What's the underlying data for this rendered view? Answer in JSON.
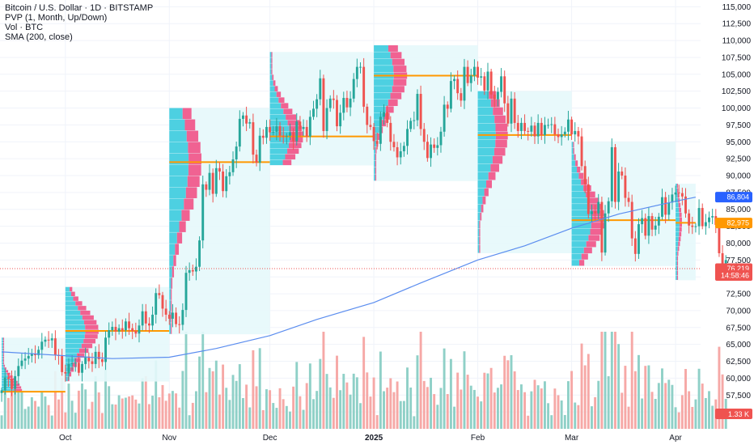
{
  "legend": {
    "symbol": "Bitcoin / U.S. Dollar · 1D · BITSTAMP",
    "pvp": "PVP (1, Month, Up/Down)",
    "vol": "Vol · BTC",
    "sma": "SMA (200, close)"
  },
  "colors": {
    "up": "#26a69a",
    "down": "#ef5350",
    "up_vol": "#8fd0c7",
    "down_vol": "#f6a8a6",
    "sma": "#5b8def",
    "poc": "#ff9800",
    "profile_up": "#4dd0e1",
    "profile_down": "#f06292",
    "profile_bg": "#e6f8fb",
    "price_line": "#ef5350"
  },
  "chart_data": {
    "type": "candlestick",
    "title": "Bitcoin / U.S. Dollar · 1D · BITSTAMP",
    "y_ticks": [
      55000,
      57500,
      60000,
      62500,
      65000,
      67500,
      70000,
      72500,
      75000,
      77500,
      80000,
      82500,
      85000,
      87500,
      90000,
      92500,
      95000,
      97500,
      100000,
      102500,
      105000,
      107500,
      110000,
      112500,
      115000
    ],
    "y_tick_labels": [
      "55,000",
      "57,500",
      "60,000",
      "62,500",
      "65,000",
      "67,500",
      "70,000",
      "72,500",
      "75,000",
      "77,500",
      "80,000",
      "82,500",
      "85,000",
      "87,500",
      "90,000",
      "92,500",
      "95,000",
      "97,500",
      "100,000",
      "102,500",
      "105,000",
      "107,500",
      "110,000",
      "112,500",
      "115,000"
    ],
    "ylim": [
      52500,
      116000
    ],
    "x_labels": [
      {
        "date": "2024-10-01",
        "label": "Oct",
        "bold": false
      },
      {
        "date": "2024-11-01",
        "label": "Nov",
        "bold": false
      },
      {
        "date": "2024-12-01",
        "label": "Dec",
        "bold": false
      },
      {
        "date": "2025-01-01",
        "label": "2025",
        "bold": true
      },
      {
        "date": "2025-02-01",
        "label": "Feb",
        "bold": false
      },
      {
        "date": "2025-03-01",
        "label": "Mar",
        "bold": false
      },
      {
        "date": "2025-04-01",
        "label": "Apr",
        "bold": false
      }
    ],
    "date_start": "2024-09-12",
    "date_end": "2025-04-07",
    "close_series": [
      58200,
      60100,
      59900,
      58400,
      60300,
      61800,
      62600,
      62900,
      63300,
      63600,
      63400,
      64200,
      65400,
      65700,
      65600,
      65900,
      63400,
      63300,
      60900,
      60700,
      62100,
      62200,
      62300,
      60800,
      62100,
      63200,
      62500,
      62100,
      63900,
      62800,
      62400,
      66000,
      67100,
      67600,
      66900,
      67400,
      67100,
      68400,
      67400,
      67000,
      66600,
      67800,
      69900,
      68100,
      67800,
      69400,
      72600,
      72300,
      70300,
      69400,
      68800,
      69700,
      68000,
      67900,
      70100,
      75600,
      76000,
      75800,
      76500,
      80400,
      88700,
      87900,
      90400,
      87300,
      91100,
      90600,
      87700,
      89900,
      90500,
      92400,
      94300,
      98400,
      98900,
      97700,
      97900,
      93100,
      91900,
      95900,
      95600,
      97200,
      96400,
      96500,
      97300,
      95900,
      95800,
      95900,
      96400,
      95100,
      98000,
      96900,
      97200,
      95800,
      98700,
      99900,
      101300,
      104400,
      96600,
      100000,
      101400,
      101200,
      97300,
      99300,
      101500,
      100100,
      101400,
      104300,
      106100,
      106100,
      100200,
      97500,
      97200,
      95100,
      94700,
      98700,
      99400,
      97800,
      95000,
      94200,
      92700,
      93600,
      94400,
      96900,
      98100,
      98200,
      102100,
      96900,
      95000,
      92600,
      94600,
      94100,
      94500,
      96500,
      100500,
      99900,
      104000,
      104300,
      102200,
      101100,
      106100,
      103700,
      104800,
      106100,
      104500,
      104700,
      102600,
      105400,
      102000,
      101300,
      102400,
      104700,
      100700,
      97700,
      101400,
      97800,
      96600,
      97800,
      96600,
      96500,
      97400,
      95800,
      97800,
      96000,
      97500,
      97500,
      97600,
      96100,
      95700,
      96100,
      96500,
      98300,
      96100,
      96600,
      95800,
      91400,
      88700,
      84300,
      84700,
      84400,
      86100,
      78600,
      84400,
      86200,
      94200,
      86100,
      90600,
      90000,
      86700,
      86100,
      80700,
      78400,
      82800,
      83700,
      81100,
      84000,
      82000,
      82600,
      83900,
      86800,
      84200,
      86000,
      87200,
      87500,
      87400,
      86900,
      84400,
      82600,
      82400,
      82500,
      85200,
      82500,
      83100,
      83800,
      84000,
      82700,
      78500,
      76500,
      77500
    ],
    "series": [
      {
        "name": "Bitcoin / U.S. Dollar · 1D · BITSTAMP",
        "type": "candlestick"
      },
      {
        "name": "SMA (200, close)",
        "type": "line"
      },
      {
        "name": "Vol · BTC",
        "type": "volume"
      },
      {
        "name": "PVP (1, Month, Up/Down)",
        "type": "volume-profile"
      }
    ],
    "sma_series": [
      {
        "date": "2024-09-12",
        "value": 63900
      },
      {
        "date": "2024-10-15",
        "value": 62900
      },
      {
        "date": "2024-11-01",
        "value": 63100
      },
      {
        "date": "2024-11-15",
        "value": 64400
      },
      {
        "date": "2024-12-01",
        "value": 66300
      },
      {
        "date": "2024-12-15",
        "value": 68700
      },
      {
        "date": "2025-01-01",
        "value": 71200
      },
      {
        "date": "2025-01-15",
        "value": 74100
      },
      {
        "date": "2025-02-01",
        "value": 77500
      },
      {
        "date": "2025-02-15",
        "value": 79600
      },
      {
        "date": "2025-03-01",
        "value": 82200
      },
      {
        "date": "2025-03-15",
        "value": 84300
      },
      {
        "date": "2025-04-01",
        "value": 86200
      },
      {
        "date": "2025-04-07",
        "value": 86804
      }
    ],
    "volume_profiles": [
      {
        "start": "2024-09-12",
        "end": "2024-10-01",
        "low": 58000,
        "high": 66000,
        "poc": 58000
      },
      {
        "start": "2024-10-01",
        "end": "2024-11-01",
        "low": 59500,
        "high": 73500,
        "poc": 67000
      },
      {
        "start": "2024-11-01",
        "end": "2024-12-01",
        "low": 66500,
        "high": 100000,
        "poc": 92000
      },
      {
        "start": "2024-12-01",
        "end": "2025-01-01",
        "low": 91500,
        "high": 108300,
        "poc": 95800
      },
      {
        "start": "2025-01-01",
        "end": "2025-02-01",
        "low": 89200,
        "high": 109300,
        "poc": 104800
      },
      {
        "start": "2025-02-01",
        "end": "2025-03-01",
        "low": 78500,
        "high": 102500,
        "poc": 96000
      },
      {
        "start": "2025-03-01",
        "end": "2025-04-01",
        "low": 76600,
        "high": 95000,
        "poc": 83400
      },
      {
        "start": "2025-04-01",
        "end": "2025-04-07",
        "low": 74500,
        "high": 88800,
        "poc": 83000
      }
    ],
    "price_tags": [
      {
        "label": "86,804",
        "value": 86804,
        "color": "#2962ff"
      },
      {
        "label": "82,975",
        "value": 82975,
        "color": "#ff9800"
      },
      {
        "label": "76,219",
        "value": 76219,
        "color": "#ef5350"
      },
      {
        "label": "14:58:46",
        "value": 75200,
        "color": "#ef5350"
      }
    ],
    "last_price": 76219,
    "volume_tag": {
      "label": "1.33 K",
      "color": "#ef5350"
    },
    "grid": true
  }
}
